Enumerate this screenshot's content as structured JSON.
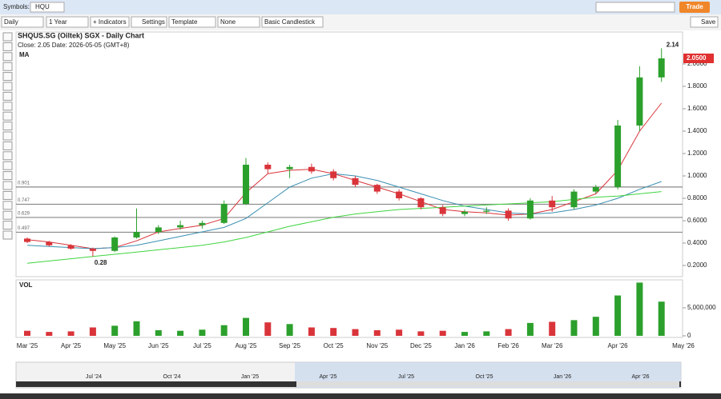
{
  "toolbar": {
    "symbols_label": "Symbols:",
    "symbol": "HQU",
    "trade": "Trade",
    "period": "Daily",
    "range": "1 Year",
    "indicators": "+ Indicators",
    "settings": "Settings",
    "template": "Template",
    "none": "None",
    "style": "Basic Candlestick",
    "save": "Save"
  },
  "navigator": {
    "labels": [
      "Jul '24",
      "Oct '24",
      "Jan '25",
      "Apr '25",
      "Jul '25",
      "Oct '25",
      "Jan '26",
      "Apr '26"
    ]
  },
  "chart_data": [
    {
      "type": "candlestick",
      "title": "SHQUS.SG (Oiltek) SGX - Daily Chart",
      "info": "Close: 2.05  Date: 2026-05-05 (GMT+8)",
      "ma_label": "MA",
      "categories": [
        "Mar '25",
        null,
        "Apr '25",
        null,
        "May '25",
        null,
        "Jun '25",
        null,
        "Jul '25",
        null,
        "Aug '25",
        null,
        "Sep '25",
        null,
        "Oct '25",
        null,
        "Nov '25",
        null,
        "Dec '25",
        null,
        "Jan '26",
        null,
        "Feb '26",
        null,
        "Mar '26",
        null,
        null,
        "Apr '26",
        null,
        null,
        "May '26"
      ],
      "open": [
        0.44,
        0.41,
        0.38,
        0.35,
        0.33,
        0.45,
        0.5,
        0.54,
        0.56,
        0.58,
        0.75,
        1.1,
        1.06,
        1.08,
        1.04,
        0.98,
        0.92,
        0.86,
        0.8,
        0.72,
        0.66,
        0.68,
        0.69,
        0.62,
        0.78,
        0.72,
        0.86,
        0.9,
        1.45,
        1.88,
        null
      ],
      "high": [
        0.45,
        0.42,
        0.39,
        0.36,
        0.46,
        0.71,
        0.56,
        0.6,
        0.6,
        0.78,
        1.16,
        1.12,
        1.1,
        1.11,
        1.06,
        1.0,
        0.93,
        0.88,
        0.81,
        0.74,
        0.7,
        0.72,
        0.71,
        0.8,
        0.82,
        0.88,
        0.92,
        1.5,
        1.98,
        2.14,
        null
      ],
      "low": [
        0.4,
        0.37,
        0.34,
        0.28,
        0.32,
        0.44,
        0.48,
        0.52,
        0.53,
        0.57,
        0.74,
        1.02,
        0.98,
        1.02,
        0.96,
        0.9,
        0.84,
        0.78,
        0.7,
        0.64,
        0.64,
        0.66,
        0.6,
        0.61,
        0.68,
        0.7,
        0.84,
        0.88,
        1.4,
        1.84,
        null
      ],
      "close": [
        0.41,
        0.38,
        0.35,
        0.33,
        0.45,
        0.5,
        0.54,
        0.56,
        0.58,
        0.75,
        1.1,
        1.06,
        1.08,
        1.04,
        0.98,
        0.92,
        0.86,
        0.8,
        0.72,
        0.66,
        0.68,
        0.69,
        0.62,
        0.78,
        0.72,
        0.86,
        0.9,
        1.45,
        1.88,
        2.05,
        null
      ],
      "series": [
        {
          "color": "#d9343a",
          "values": [
            0.43,
            0.41,
            0.38,
            0.35,
            0.36,
            0.42,
            0.5,
            0.53,
            0.56,
            0.62,
            0.85,
            1.02,
            1.05,
            1.06,
            1.02,
            0.96,
            0.9,
            0.84,
            0.77,
            0.7,
            0.68,
            0.67,
            0.65,
            0.66,
            0.7,
            0.77,
            0.84,
            1.05,
            1.4,
            1.65,
            null
          ]
        },
        {
          "color": "#3a8fb0",
          "values": [
            0.38,
            0.37,
            0.36,
            0.35,
            0.36,
            0.38,
            0.42,
            0.46,
            0.5,
            0.54,
            0.62,
            0.76,
            0.9,
            0.98,
            1.02,
            1.0,
            0.96,
            0.9,
            0.84,
            0.78,
            0.73,
            0.7,
            0.67,
            0.66,
            0.67,
            0.7,
            0.74,
            0.8,
            0.88,
            0.95,
            null
          ]
        },
        {
          "color": "#3fd43f",
          "values": [
            0.22,
            0.24,
            0.26,
            0.28,
            0.3,
            0.32,
            0.34,
            0.36,
            0.38,
            0.41,
            0.45,
            0.5,
            0.55,
            0.59,
            0.63,
            0.66,
            0.68,
            0.7,
            0.71,
            0.72,
            0.73,
            0.74,
            0.75,
            0.76,
            0.77,
            0.79,
            0.81,
            0.82,
            0.84,
            0.86,
            null
          ]
        }
      ],
      "up_color": "#2ca02c",
      "down_color": "#d9343a",
      "levels": [
        0.901,
        0.747,
        0.629,
        0.497
      ],
      "annotations": [
        2.14,
        0.28
      ],
      "last_price": {
        "value": 2.05,
        "label": "2.0500"
      },
      "ylim": [
        0.1,
        2.25
      ],
      "yticks": [
        {
          "value": 0.2,
          "label": "0.2000"
        },
        {
          "value": 0.4,
          "label": "0.4000"
        },
        {
          "value": 0.6,
          "label": "0.6000"
        },
        {
          "value": 0.8,
          "label": "0.8000"
        },
        {
          "value": 1.0,
          "label": "1.0000"
        },
        {
          "value": 1.2,
          "label": "1.2000"
        },
        {
          "value": 1.4,
          "label": "1.4000"
        },
        {
          "value": 1.6,
          "label": "1.6000"
        },
        {
          "value": 1.8,
          "label": "1.8000"
        },
        {
          "value": 2.0,
          "label": "2.0000"
        }
      ]
    },
    {
      "type": "bar",
      "title": "VOL",
      "values": [
        900000,
        700000,
        800000,
        1500000,
        1800000,
        2600000,
        1000000,
        900000,
        1100000,
        1900000,
        3200000,
        2400000,
        2100000,
        1500000,
        1400000,
        1200000,
        1000000,
        1100000,
        800000,
        900000,
        700000,
        800000,
        1200000,
        2300000,
        2500000,
        2800000,
        3400000,
        7200000,
        9500000,
        6100000,
        null
      ],
      "ylim": [
        0,
        9700000
      ],
      "yticks": [
        0,
        {
          "value": 5000000,
          "label": "5,000,000"
        }
      ]
    }
  ]
}
